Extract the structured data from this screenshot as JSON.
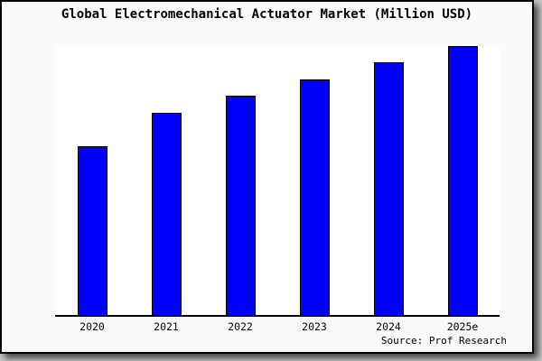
{
  "chart": {
    "bar_fill_color": "#0000ff",
    "bar_border_color": "#000000",
    "frame_background": "#fafafa",
    "plot_background": "#ffffff",
    "axis_color": "#000000"
  },
  "chart_data": {
    "type": "bar",
    "title": "Global Electromechanical Actuator Market (Million USD)",
    "categories": [
      "2020",
      "2021",
      "2022",
      "2023",
      "2024",
      "2025e"
    ],
    "values": [
      62.8,
      75.2,
      81.5,
      87.6,
      94.0,
      100
    ],
    "values_note": "relative bar heights as % of tallest bar (2025e); no numeric y-axis labels shown in chart",
    "xlabel": "",
    "ylabel": "",
    "ylim": [
      0,
      100
    ],
    "grid": false,
    "legend": null,
    "y_axis_visible": false,
    "source": "Source: Prof Research"
  }
}
